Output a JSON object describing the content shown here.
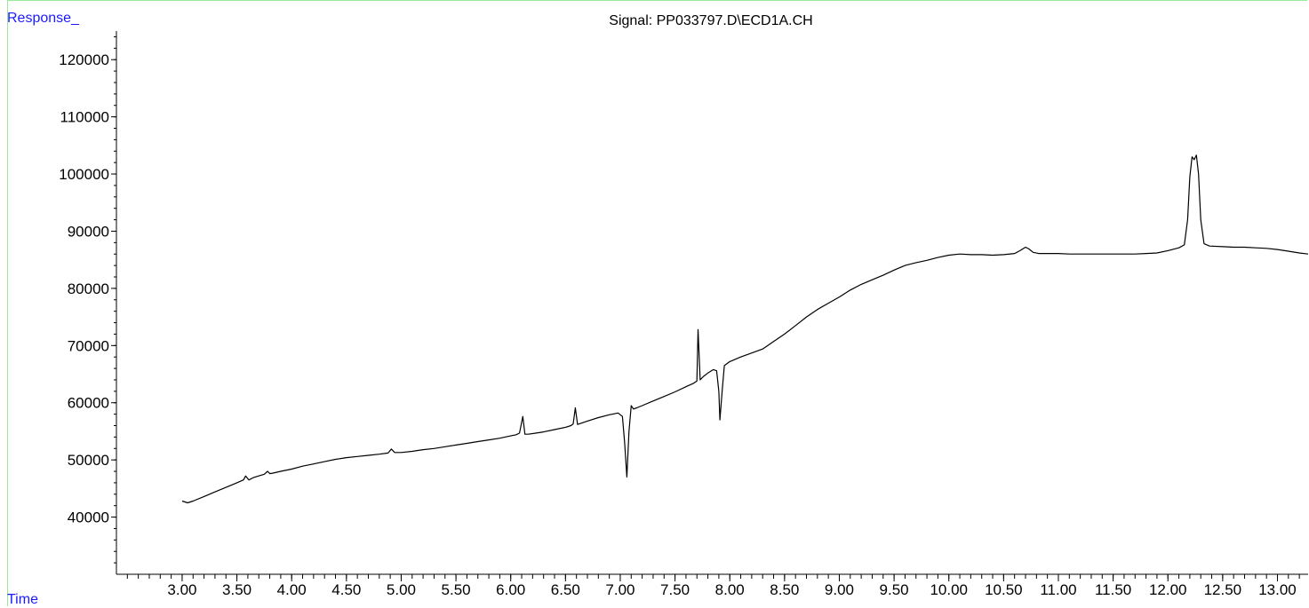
{
  "chart_data": {
    "type": "line",
    "title": "Signal: PP033797.D\\ECD1A.CH",
    "ylabel": "Response_",
    "xlabel": "Time",
    "xlim": [
      2.4,
      13.28
    ],
    "ylim": [
      30000,
      125000
    ],
    "x_ticks": [
      "3.00",
      "3.50",
      "4.00",
      "4.50",
      "5.00",
      "5.50",
      "6.00",
      "6.50",
      "7.00",
      "7.50",
      "8.00",
      "8.50",
      "9.00",
      "9.50",
      "10.00",
      "10.50",
      "11.00",
      "11.50",
      "12.00",
      "12.50",
      "13.00"
    ],
    "y_ticks": [
      "40000",
      "50000",
      "60000",
      "70000",
      "80000",
      "90000",
      "100000",
      "110000",
      "120000"
    ],
    "grid": false,
    "series": [
      {
        "color": "#000000",
        "x": [
          3.0,
          3.05,
          3.1,
          3.2,
          3.3,
          3.4,
          3.5,
          3.56,
          3.58,
          3.61,
          3.65,
          3.7,
          3.75,
          3.78,
          3.8,
          3.83,
          3.9,
          4.0,
          4.1,
          4.2,
          4.3,
          4.4,
          4.5,
          4.6,
          4.7,
          4.8,
          4.88,
          4.91,
          4.94,
          5.0,
          5.1,
          5.2,
          5.3,
          5.4,
          5.5,
          5.6,
          5.7,
          5.8,
          5.9,
          6.0,
          6.05,
          6.08,
          6.11,
          6.13,
          6.16,
          6.2,
          6.3,
          6.4,
          6.5,
          6.55,
          6.57,
          6.59,
          6.61,
          6.7,
          6.8,
          6.9,
          6.98,
          7.02,
          7.04,
          7.06,
          7.08,
          7.1,
          7.12,
          7.15,
          7.2,
          7.3,
          7.4,
          7.5,
          7.6,
          7.67,
          7.7,
          7.71,
          7.73,
          7.76,
          7.8,
          7.85,
          7.88,
          7.9,
          7.91,
          7.93,
          7.95,
          8.0,
          8.1,
          8.2,
          8.3,
          8.4,
          8.5,
          8.6,
          8.7,
          8.8,
          8.9,
          9.0,
          9.1,
          9.2,
          9.3,
          9.4,
          9.5,
          9.6,
          9.7,
          9.8,
          9.9,
          10.0,
          10.1,
          10.2,
          10.3,
          10.4,
          10.5,
          10.6,
          10.65,
          10.7,
          10.73,
          10.77,
          10.82,
          10.9,
          11.0,
          11.1,
          11.2,
          11.3,
          11.4,
          11.5,
          11.6,
          11.7,
          11.8,
          11.9,
          12.0,
          12.1,
          12.15,
          12.18,
          12.2,
          12.22,
          12.24,
          12.26,
          12.28,
          12.3,
          12.33,
          12.38,
          12.5,
          12.6,
          12.7,
          12.8,
          12.9,
          13.0,
          13.1,
          13.2,
          13.28
        ],
        "values": [
          42800,
          42500,
          42800,
          43600,
          44400,
          45200,
          46000,
          46500,
          47200,
          46500,
          46900,
          47200,
          47500,
          48000,
          47600,
          47700,
          48000,
          48400,
          48900,
          49300,
          49700,
          50100,
          50400,
          50600,
          50800,
          51000,
          51200,
          51900,
          51300,
          51300,
          51500,
          51800,
          52000,
          52300,
          52600,
          52900,
          53200,
          53500,
          53800,
          54200,
          54400,
          54700,
          57600,
          54500,
          54500,
          54600,
          54900,
          55300,
          55700,
          56000,
          56300,
          59100,
          56200,
          56800,
          57400,
          57900,
          58200,
          57600,
          53000,
          47000,
          55000,
          59500,
          58900,
          59100,
          59500,
          60300,
          61100,
          61900,
          62800,
          63400,
          63800,
          72800,
          64000,
          64600,
          65200,
          65800,
          65600,
          62000,
          57000,
          62000,
          66500,
          67200,
          68000,
          68700,
          69400,
          70700,
          72000,
          73500,
          75000,
          76300,
          77400,
          78500,
          79700,
          80700,
          81500,
          82300,
          83200,
          84000,
          84500,
          84900,
          85400,
          85800,
          86000,
          85900,
          85900,
          85800,
          85900,
          86100,
          86600,
          87200,
          86900,
          86300,
          86100,
          86100,
          86100,
          86000,
          86000,
          86000,
          86000,
          86000,
          86000,
          86000,
          86100,
          86200,
          86600,
          87100,
          87600,
          92000,
          99500,
          103000,
          102500,
          103300,
          100000,
          92000,
          87800,
          87400,
          87300,
          87200,
          87200,
          87100,
          87000,
          86800,
          86500,
          86200,
          86000
        ]
      }
    ]
  }
}
